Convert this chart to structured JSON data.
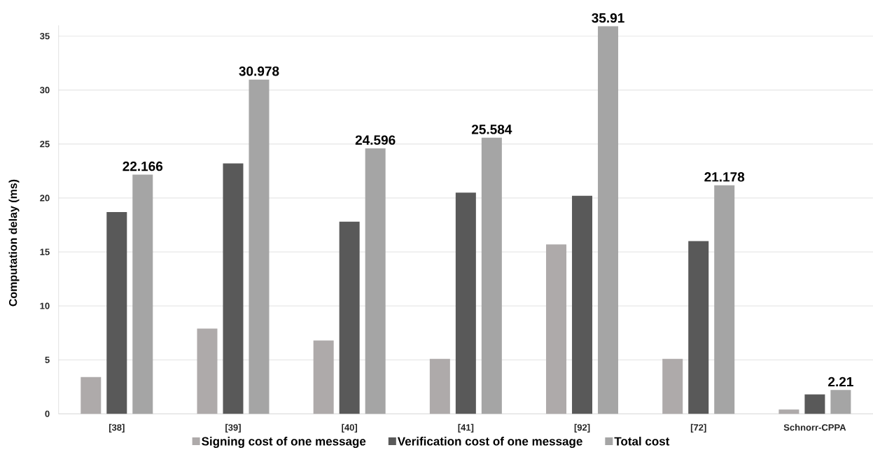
{
  "chart_data": {
    "type": "bar",
    "ylabel": "Computation delay (ms)",
    "categories": [
      "[38]",
      "[39]",
      "[40]",
      "[41]",
      "[92]",
      "[72]",
      "Schnorr-CPPA"
    ],
    "series": [
      {
        "name": "Signing cost of one message",
        "color": "#aeaaaa",
        "values": [
          3.4,
          7.9,
          6.8,
          5.1,
          15.7,
          5.1,
          0.4
        ]
      },
      {
        "name": "Verification cost of one message",
        "color": "#595959",
        "values": [
          18.7,
          23.2,
          17.8,
          20.5,
          20.2,
          16.0,
          1.8
        ]
      },
      {
        "name": "Total cost",
        "color": "#a5a5a5",
        "values": [
          22.166,
          30.978,
          24.596,
          25.584,
          35.91,
          21.178,
          2.21
        ],
        "value_labels": [
          "22.166",
          "30.978",
          "24.596",
          "25.584",
          "35.91",
          "21.178",
          "2.21"
        ]
      }
    ],
    "ylim": [
      0,
      36
    ],
    "yticks": [
      0,
      5,
      10,
      15,
      20,
      25,
      30,
      35
    ],
    "grid": "y",
    "legend": "bottom"
  }
}
